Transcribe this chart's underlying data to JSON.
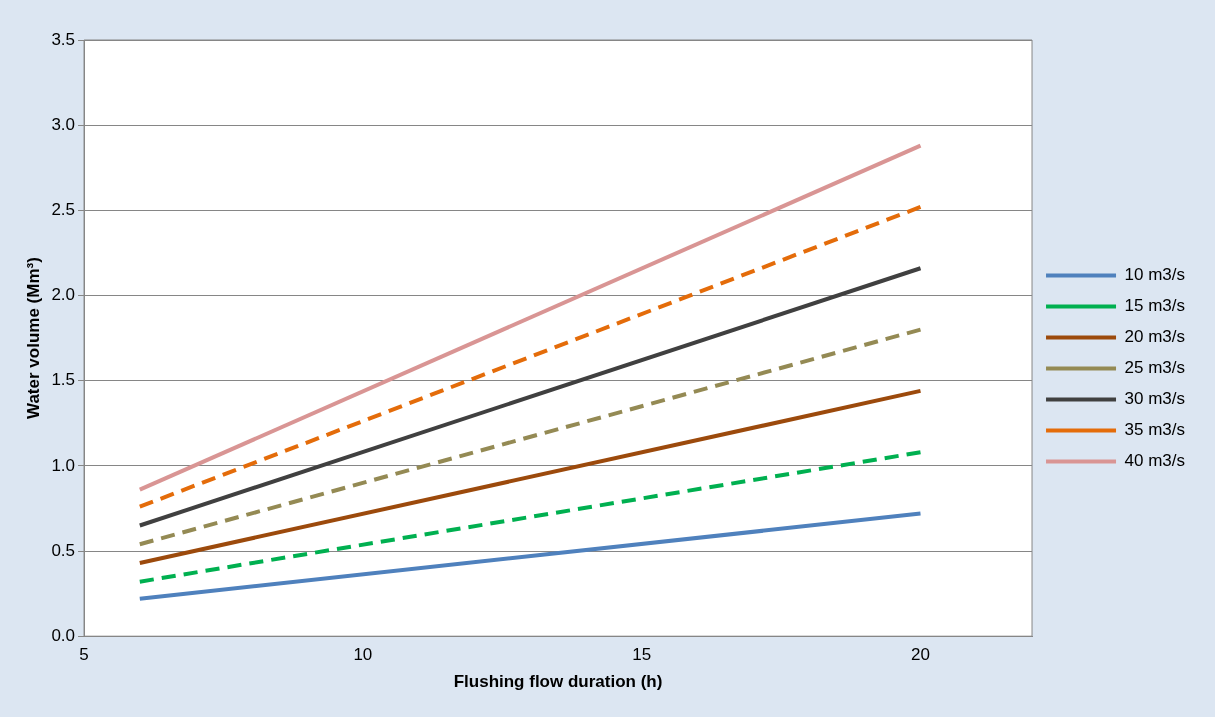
{
  "chart_data": {
    "type": "line",
    "xlabel": "Flushing flow duration (h)",
    "ylabel": "Water volume (Mm³)",
    "x": [
      6,
      20
    ],
    "series": [
      {
        "name": "10 m3/s",
        "color": "#4f81bd",
        "values": [
          0.22,
          0.72
        ],
        "line_style": "solid"
      },
      {
        "name": "15 m3/s",
        "color": "#00b050",
        "values": [
          0.32,
          1.08
        ],
        "line_style": "dashed"
      },
      {
        "name": "20 m3/s",
        "color": "#9c4a0c",
        "values": [
          0.43,
          1.44
        ],
        "line_style": "solid"
      },
      {
        "name": "25 m3/s",
        "color": "#948a54",
        "values": [
          0.54,
          1.8
        ],
        "line_style": "dashed"
      },
      {
        "name": "30 m3/s",
        "color": "#404040",
        "values": [
          0.65,
          2.16
        ],
        "line_style": "solid"
      },
      {
        "name": "35 m3/s",
        "color": "#e46c0a",
        "values": [
          0.76,
          2.52
        ],
        "line_style": "dashed"
      },
      {
        "name": "40 m3/s",
        "color": "#d99594",
        "values": [
          0.86,
          2.88
        ],
        "line_style": "solid"
      }
    ],
    "xlim": [
      5,
      22
    ],
    "xticks": [
      5,
      10,
      15,
      20
    ],
    "ylim": [
      0,
      3.5
    ],
    "yticks": [
      {
        "value": 0,
        "label": "0.0"
      },
      {
        "value": 0.5,
        "label": "0.5"
      },
      {
        "value": 1,
        "label": "1.0"
      },
      {
        "value": 1.5,
        "label": "1.5"
      },
      {
        "value": 2,
        "label": "2.0"
      },
      {
        "value": 2.5,
        "label": "2.5"
      },
      {
        "value": 3,
        "label": "3.0"
      },
      {
        "value": 3.5,
        "label": "3.5"
      }
    ],
    "grid": "y",
    "legend": "right",
    "marker": "none"
  }
}
